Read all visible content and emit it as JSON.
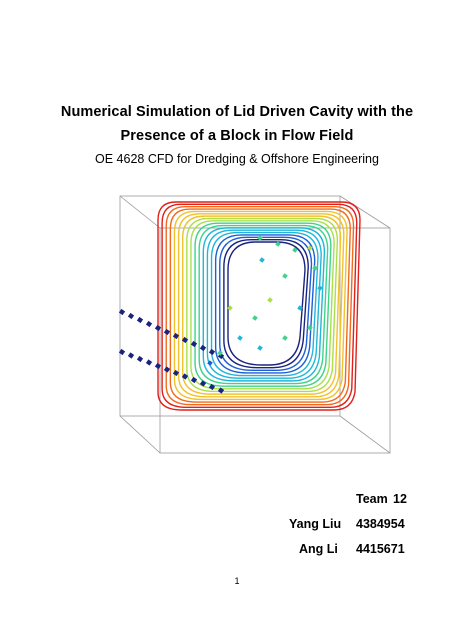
{
  "title": {
    "line1": "Numerical Simulation of Lid Driven Cavity with the",
    "line2": "Presence of a Block in Flow Field"
  },
  "subtitle": "OE 4628 CFD for Dredging & Offshore Engineering",
  "team": {
    "label": "Team",
    "number": "12"
  },
  "members": [
    {
      "name": "Yang Liu",
      "id": "4384954"
    },
    {
      "name": "Ang Li",
      "id": "4415671"
    }
  ],
  "page_number": "1",
  "figure": {
    "colormap": [
      "#1a237e",
      "#1e5fd6",
      "#22b6d8",
      "#3fd38a",
      "#a9e04a",
      "#f2c12e",
      "#f06a1e",
      "#e0201a"
    ]
  }
}
